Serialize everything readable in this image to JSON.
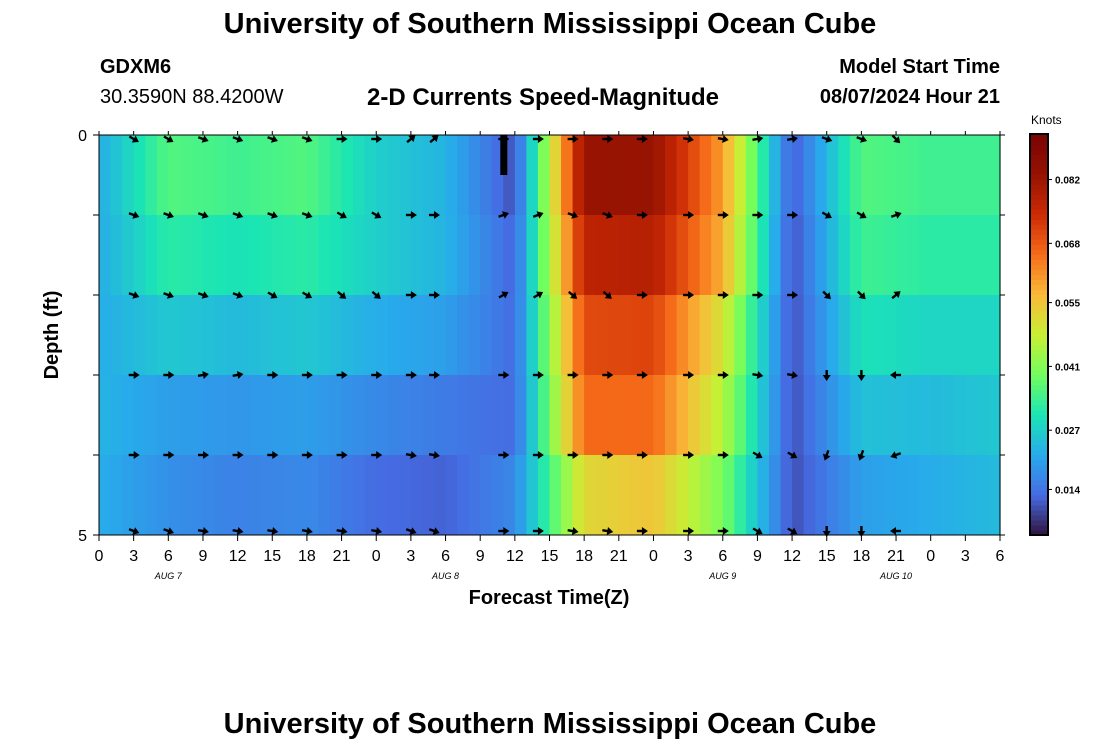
{
  "header": {
    "title": "University of Southern Mississippi Ocean Cube",
    "station": "GDXM6",
    "coords": "30.3590N  88.4200W",
    "product": "2-D Currents Speed-Magnitude",
    "model_start_label": "Model Start Time",
    "model_start_value": "08/07/2024 Hour 21"
  },
  "footer": {
    "title": "University of Southern Mississippi Ocean Cube"
  },
  "chart_data": {
    "type": "heatmap",
    "title": "2-D Currents Speed-Magnitude",
    "xlabel": "Forecast Time(Z)",
    "ylabel": "Depth (ft)",
    "x_tick_labels": [
      "0",
      "3",
      "6",
      "9",
      "12",
      "15",
      "18",
      "21",
      "0",
      "3",
      "6",
      "9",
      "12",
      "15",
      "18",
      "21",
      "0",
      "3",
      "6",
      "9",
      "12",
      "15",
      "18",
      "21",
      "0",
      "3",
      "6"
    ],
    "y_ticks": [
      0,
      5
    ],
    "ylim": [
      0,
      5
    ],
    "date_labels": [
      {
        "label": "AUG 7",
        "tick": 2
      },
      {
        "label": "AUG 8",
        "tick": 10
      },
      {
        "label": "AUG 9",
        "tick": 18
      },
      {
        "label": "AUG 10",
        "tick": 23
      }
    ],
    "colorbar": {
      "unit": "Knots",
      "ticks": [
        "0.014",
        "0.027",
        "0.041",
        "0.055",
        "0.068",
        "0.082"
      ],
      "range": [
        0.004,
        0.092
      ]
    },
    "time_hours": [
      0,
      6,
      12,
      18,
      24,
      30,
      36,
      42,
      48,
      54,
      60,
      66,
      72,
      78
    ],
    "depth_layers": [
      0,
      1,
      2,
      3,
      4,
      5
    ],
    "speed_keyframes": [
      [
        0.022,
        0.022,
        0.022,
        0.023,
        0.022,
        0.023
      ],
      [
        0.036,
        0.032,
        0.026,
        0.02,
        0.018,
        0.012
      ],
      [
        0.034,
        0.03,
        0.024,
        0.019,
        0.016,
        0.011
      ],
      [
        0.036,
        0.032,
        0.026,
        0.02,
        0.017,
        0.01
      ],
      [
        0.027,
        0.027,
        0.022,
        0.017,
        0.013,
        0.009
      ],
      [
        0.023,
        0.023,
        0.02,
        0.015,
        0.012,
        0.007
      ],
      [
        0.01,
        0.012,
        0.013,
        0.013,
        0.017,
        0.022
      ],
      [
        0.083,
        0.077,
        0.07,
        0.066,
        0.052,
        0.038
      ],
      [
        0.083,
        0.078,
        0.071,
        0.066,
        0.055,
        0.04
      ],
      [
        0.06,
        0.058,
        0.05,
        0.046,
        0.04,
        0.032
      ],
      [
        0.011,
        0.01,
        0.01,
        0.01,
        0.01,
        0.012
      ],
      [
        0.036,
        0.034,
        0.03,
        0.025,
        0.02,
        0.018
      ],
      [
        0.034,
        0.032,
        0.028,
        0.024,
        0.022,
        0.024
      ],
      [
        0.034,
        0.032,
        0.028,
        0.026,
        0.024,
        0.025
      ]
    ],
    "arrow_hours": [
      3,
      6,
      9,
      12,
      15,
      18,
      21,
      24,
      27,
      29,
      35,
      38,
      41,
      44,
      47,
      51,
      54,
      57,
      60,
      63,
      66,
      69
    ],
    "arrow_depths": [
      0,
      1,
      2,
      3,
      4,
      5
    ],
    "arrow_angles_deg": [
      [
        45,
        30,
        0,
        0,
        0,
        0,
        -10,
        30,
        0,
        45,
        45,
        45
      ],
      [
        30,
        20,
        20,
        0,
        0,
        20,
        30,
        -120,
        0,
        0,
        10,
        -150
      ],
      [
        20,
        20,
        20,
        -10,
        0,
        10,
        30,
        -180,
        0,
        0,
        10,
        -160
      ],
      [
        20,
        20,
        30,
        0,
        0,
        10,
        30,
        -180,
        0,
        0,
        20,
        -150
      ],
      [
        0,
        30,
        40,
        0,
        0,
        10,
        30,
        -160,
        0,
        0,
        20,
        -120
      ],
      [
        -40,
        0,
        0,
        0,
        10,
        20,
        30,
        -170,
        0,
        0,
        0,
        -90
      ],
      [
        0,
        -20,
        -30,
        0,
        0,
        0,
        -20,
        180,
        180,
        170,
        180,
        180
      ],
      [
        0,
        20,
        40,
        0,
        0,
        10,
        20,
        170,
        160,
        170,
        160,
        160
      ],
      [
        0,
        0,
        0,
        0,
        0,
        0,
        0,
        0,
        -90,
        -90,
        -60,
        -90
      ],
      [
        10,
        0,
        0,
        0,
        0,
        0,
        20,
        0,
        10,
        10,
        20,
        30
      ],
      [
        -10,
        0,
        0,
        10,
        30,
        30,
        30,
        20,
        20,
        20,
        30,
        20
      ],
      [
        20,
        30,
        45,
        90,
        110,
        90,
        70,
        80,
        10,
        10,
        0,
        0
      ],
      [
        45,
        -20,
        -40,
        180,
        160,
        180,
        180,
        180,
        180,
        180,
        180,
        170
      ],
      [
        -30,
        20,
        -30,
        180,
        -170,
        170,
        180,
        170,
        180,
        160,
        170,
        150
      ]
    ]
  }
}
